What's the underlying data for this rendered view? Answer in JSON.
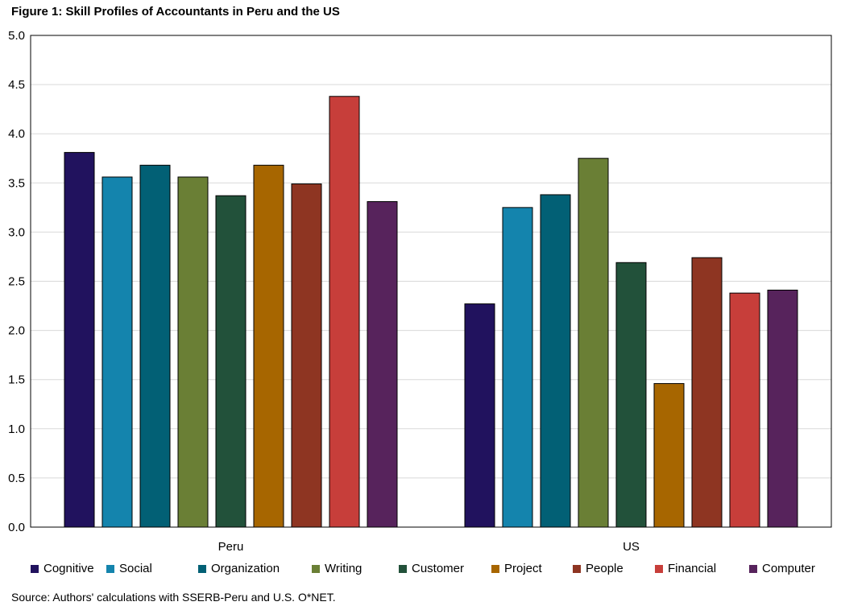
{
  "chart_data": {
    "type": "bar",
    "title": "Figure 1: Skill Profiles of Accountants in Peru and the US",
    "xlabel": "",
    "ylabel": "",
    "ylim": [
      0,
      5
    ],
    "yticks": [
      "0.0",
      "0.5",
      "1.0",
      "1.5",
      "2.0",
      "2.5",
      "3.0",
      "3.5",
      "4.0",
      "4.5",
      "5.0"
    ],
    "categories": [
      "Peru",
      "US"
    ],
    "grid": true,
    "legend_position": "bottom",
    "series": [
      {
        "name": "Cognitive",
        "color": "#21125e",
        "values": [
          3.81,
          2.27
        ]
      },
      {
        "name": "Social",
        "color": "#1484ad",
        "values": [
          3.56,
          3.25
        ]
      },
      {
        "name": "Organization",
        "color": "#026075",
        "values": [
          3.68,
          3.38
        ]
      },
      {
        "name": "Writing",
        "color": "#6a7f35",
        "values": [
          3.56,
          3.75
        ]
      },
      {
        "name": "Customer",
        "color": "#22513a",
        "values": [
          3.37,
          2.69
        ]
      },
      {
        "name": "Project",
        "color": "#a76600",
        "values": [
          3.68,
          1.46
        ]
      },
      {
        "name": "People",
        "color": "#8e3522",
        "values": [
          3.49,
          2.74
        ]
      },
      {
        "name": "Financial",
        "color": "#c73e3a",
        "values": [
          4.38,
          2.38
        ]
      },
      {
        "name": "Computer",
        "color": "#57235c",
        "values": [
          3.31,
          2.41
        ]
      }
    ],
    "source": "Source: Authors' calculations with SSERB-Peru and U.S. O*NET."
  }
}
